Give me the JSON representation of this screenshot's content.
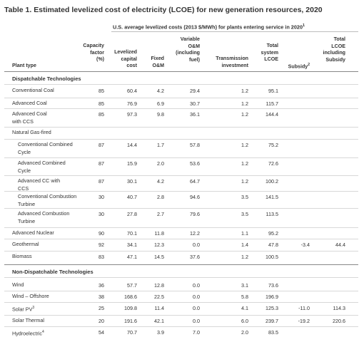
{
  "title": "Table 1. Estimated levelized cost of electricity (LCOE) for new generation resources, 2020",
  "subheader": "U.S. average levelized costs (2013 $/MWh) for plants entering service in 2020",
  "subheader_sup": "1",
  "columns": {
    "plant_type": "Plant type",
    "capacity_factor": "Capacity factor (%)",
    "levelized_capital": "Levelized capital cost",
    "fixed_om": "Fixed O&M",
    "variable_om": "Variable O&M (including fuel)",
    "transmission": "Transmission investment",
    "total_lcoe": "Total system LCOE",
    "subsidy": "Subsidy",
    "subsidy_sup": "2",
    "total_with_subsidy": "Total LCOE including Subsidy"
  },
  "sections": {
    "dispatchable": "Dispatchable Technologies",
    "non_dispatchable": "Non-Dispatchable Technologies"
  },
  "rows": [
    {
      "name": "Conventional Coal",
      "cf": "85",
      "cap": "60.4",
      "fom": "4.2",
      "vom": "29.4",
      "trans": "1.2",
      "total": "95.1",
      "sub": "",
      "tsub": ""
    },
    {
      "name": "Advanced Coal",
      "cf": "85",
      "cap": "76.9",
      "fom": "6.9",
      "vom": "30.7",
      "trans": "1.2",
      "total": "115.7",
      "sub": "",
      "tsub": ""
    },
    {
      "name": "Advanced Coal with CCS",
      "cf": "85",
      "cap": "97.3",
      "fom": "9.8",
      "vom": "36.1",
      "trans": "1.2",
      "total": "144.4",
      "sub": "",
      "tsub": ""
    },
    {
      "name": "Natural Gas-fired",
      "cf": "",
      "cap": "",
      "fom": "",
      "vom": "",
      "trans": "",
      "total": "",
      "sub": "",
      "tsub": ""
    },
    {
      "name": "Conventional Combined Cycle",
      "cf": "87",
      "cap": "14.4",
      "fom": "1.7",
      "vom": "57.8",
      "trans": "1.2",
      "total": "75.2",
      "sub": "",
      "tsub": ""
    },
    {
      "name": "Advanced Combined Cycle",
      "cf": "87",
      "cap": "15.9",
      "fom": "2.0",
      "vom": "53.6",
      "trans": "1.2",
      "total": "72.6",
      "sub": "",
      "tsub": ""
    },
    {
      "name": "Advanced CC with CCS",
      "cf": "87",
      "cap": "30.1",
      "fom": "4.2",
      "vom": "64.7",
      "trans": "1.2",
      "total": "100.2",
      "sub": "",
      "tsub": ""
    },
    {
      "name": "Conventional Combustion Turbine",
      "cf": "30",
      "cap": "40.7",
      "fom": "2.8",
      "vom": "94.6",
      "trans": "3.5",
      "total": "141.5",
      "sub": "",
      "tsub": ""
    },
    {
      "name": "Advanced Combustion Turbine",
      "cf": "30",
      "cap": "27.8",
      "fom": "2.7",
      "vom": "79.6",
      "trans": "3.5",
      "total": "113.5",
      "sub": "",
      "tsub": ""
    },
    {
      "name": "Advanced Nuclear",
      "cf": "90",
      "cap": "70.1",
      "fom": "11.8",
      "vom": "12.2",
      "trans": "1.1",
      "total": "95.2",
      "sub": "",
      "tsub": ""
    },
    {
      "name": "Geothermal",
      "cf": "92",
      "cap": "34.1",
      "fom": "12.3",
      "vom": "0.0",
      "trans": "1.4",
      "total": "47.8",
      "sub": "-3.4",
      "tsub": "44.4"
    },
    {
      "name": "Biomass",
      "cf": "83",
      "cap": "47.1",
      "fom": "14.5",
      "vom": "37.6",
      "trans": "1.2",
      "total": "100.5",
      "sub": "",
      "tsub": ""
    },
    {
      "name": "Wind",
      "cf": "36",
      "cap": "57.7",
      "fom": "12.8",
      "vom": "0.0",
      "trans": "3.1",
      "total": "73.6",
      "sub": "",
      "tsub": ""
    },
    {
      "name": "Wind – Offshore",
      "cf": "38",
      "cap": "168.6",
      "fom": "22.5",
      "vom": "0.0",
      "trans": "5.8",
      "total": "196.9",
      "sub": "",
      "tsub": ""
    },
    {
      "name": "Solar PV",
      "name_sup": "3",
      "cf": "25",
      "cap": "109.8",
      "fom": "11.4",
      "vom": "0.0",
      "trans": "4.1",
      "total": "125.3",
      "sub": "-11.0",
      "tsub": "114.3"
    },
    {
      "name": "Solar Thermal",
      "cf": "20",
      "cap": "191.6",
      "fom": "42.1",
      "vom": "0.0",
      "trans": "6.0",
      "total": "239.7",
      "sub": "-19.2",
      "tsub": "220.6"
    },
    {
      "name": "Hydroelectric",
      "name_sup": "4",
      "cf": "54",
      "cap": "70.7",
      "fom": "3.9",
      "vom": "7.0",
      "trans": "2.0",
      "total": "83.5",
      "sub": "",
      "tsub": ""
    }
  ]
}
